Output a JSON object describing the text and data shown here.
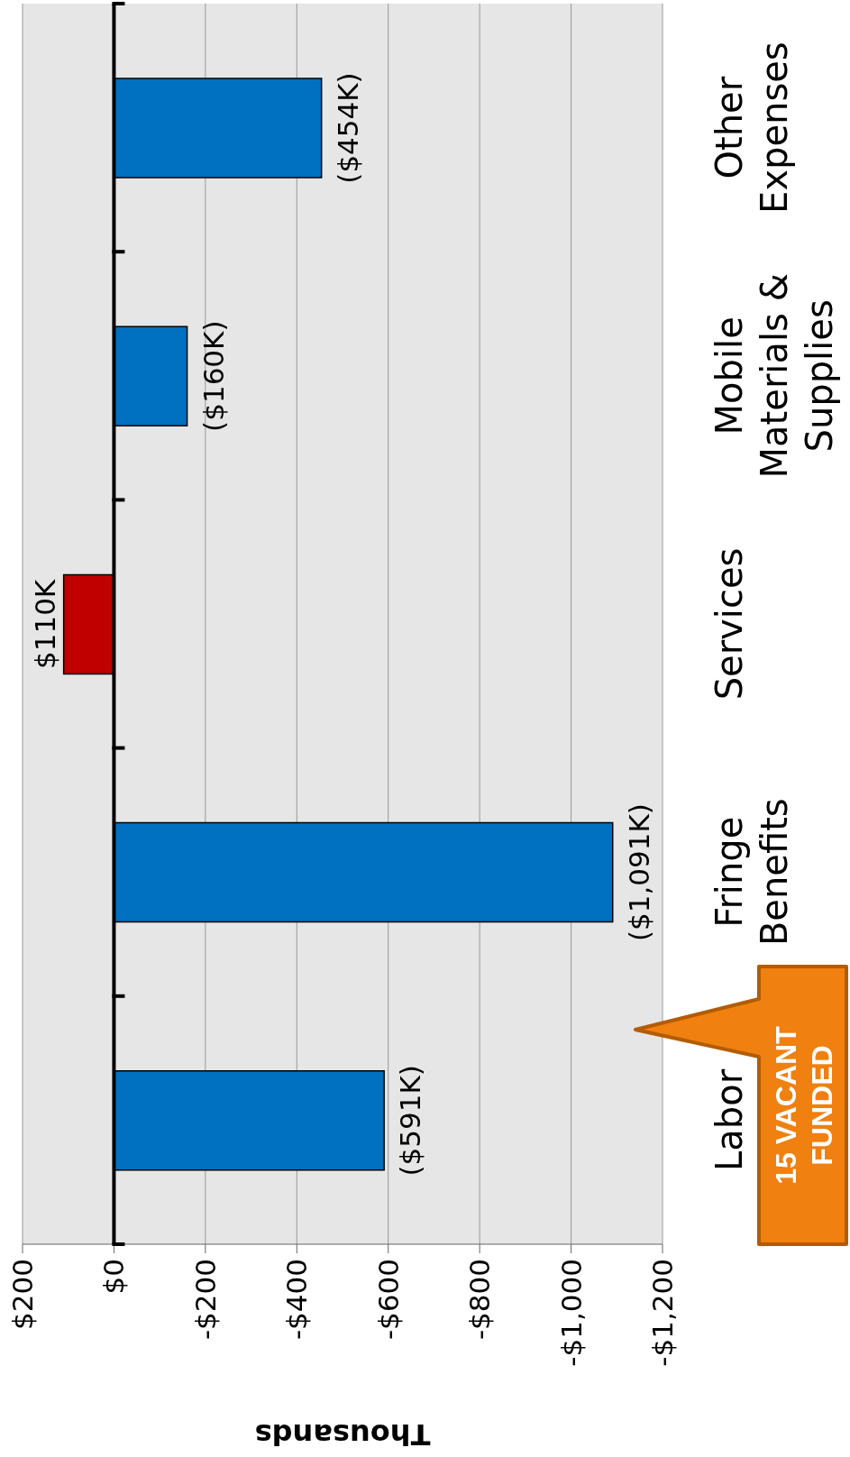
{
  "chart_data": {
    "type": "bar",
    "orientation": "horizontal",
    "xlabel": "Thousands",
    "categories": [
      "Other Expenses",
      "Mobile Materials & Supplies",
      "Services",
      "Fringe Benefits",
      "Labor"
    ],
    "values": [
      -454,
      -160,
      110,
      -1091,
      -591
    ],
    "colors": [
      "#0070c0",
      "#0070c0",
      "#c00000",
      "#0070c0",
      "#0070c0"
    ],
    "value_labels": [
      "($454K)",
      "($160K)",
      "$110K",
      "($1,091K)",
      "($591K)"
    ],
    "xlim": [
      200,
      -1200
    ],
    "xticks": [
      {
        "value": 200,
        "label": "$200"
      },
      {
        "value": 0,
        "label": "$0"
      },
      {
        "value": -200,
        "label": "-$200"
      },
      {
        "value": -400,
        "label": "-$400"
      },
      {
        "value": -600,
        "label": "-$600"
      },
      {
        "value": -800,
        "label": "-$800"
      },
      {
        "value": -1000,
        "label": "-$1,000"
      },
      {
        "value": -1200,
        "label": "-$1,200"
      }
    ],
    "grid": "x",
    "annotations": [
      "15 VACANT FUNDED"
    ]
  }
}
